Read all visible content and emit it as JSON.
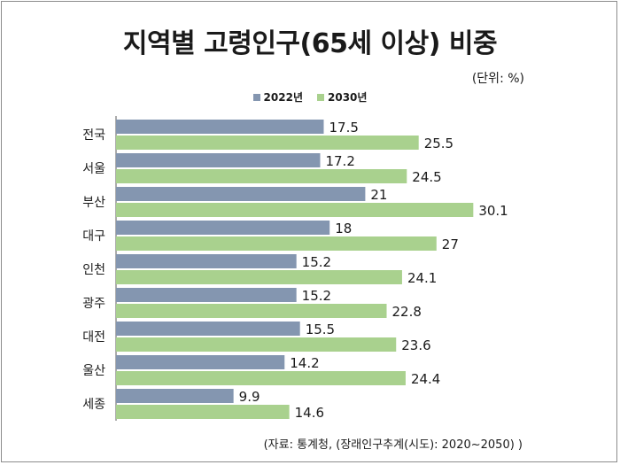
{
  "chart_data": {
    "type": "bar",
    "orientation": "horizontal",
    "title": "지역별 고령인구(65세 이상) 비중",
    "unit": "(단위: %)",
    "source": "(자료: 통계청, (장래인구추계(시도): 2020~2050) )",
    "categories": [
      "전국",
      "서울",
      "부산",
      "대구",
      "인천",
      "광주",
      "대전",
      "울산",
      "세종"
    ],
    "series": [
      {
        "name": "2022년",
        "color": "#8496b0",
        "values": [
          17.5,
          17.2,
          21,
          18,
          15.2,
          15.2,
          15.5,
          14.2,
          9.9
        ],
        "labels": [
          "17.5",
          "17.2",
          "21",
          "18",
          "15.2",
          "15.2",
          "15.5",
          "14.2",
          "9.9"
        ]
      },
      {
        "name": "2030년",
        "color": "#a9d18e",
        "values": [
          25.5,
          24.5,
          30.1,
          27,
          24.1,
          22.8,
          23.6,
          24.4,
          14.6
        ],
        "labels": [
          "25.5",
          "24.5",
          "30.1",
          "27",
          "24.1",
          "22.8",
          "23.6",
          "24.4",
          "14.6"
        ]
      }
    ],
    "legend": "top",
    "grid": false
  }
}
